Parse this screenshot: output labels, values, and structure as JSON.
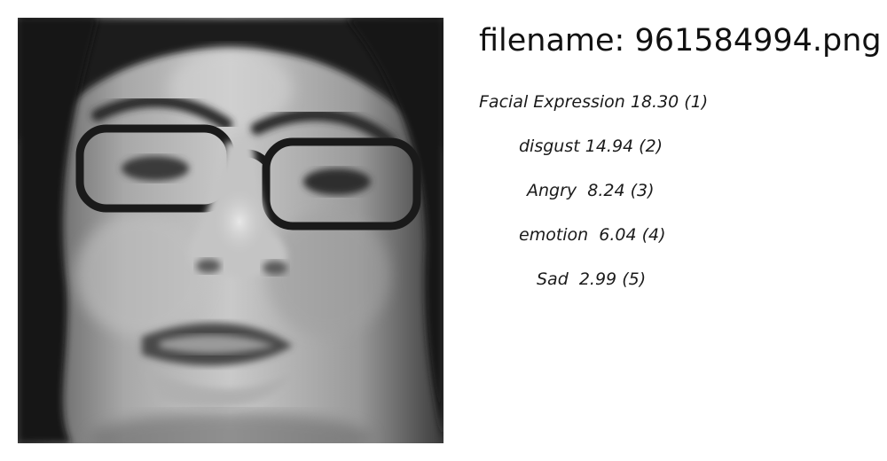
{
  "image": {
    "icon": "grayscale-face-photo"
  },
  "file": {
    "label": "filename: 961584994.png"
  },
  "predictions": [
    {
      "text": "Facial Expression 18.30 (1)"
    },
    {
      "text": "disgust 14.94 (2)"
    },
    {
      "text": "Angry  8.24 (3)"
    },
    {
      "text": "emotion  6.04 (4)"
    },
    {
      "text": "Sad  2.99 (5)"
    }
  ]
}
